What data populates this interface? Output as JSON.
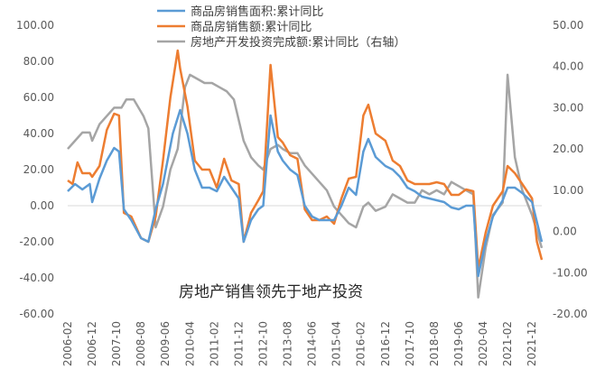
{
  "chart_data": {
    "type": "line",
    "legend": {
      "position": "top",
      "items": [
        {
          "label": "商品房销售面积:累计同比",
          "color": "#5b9bd5"
        },
        {
          "label": "商品房销售额:累计同比",
          "color": "#ed7d31"
        },
        {
          "label": "房地产开发投资完成额:累计同比（右轴）",
          "color": "#a5a5a5"
        }
      ]
    },
    "annotation": "房地产销售领先于地产投资",
    "left_axis": {
      "range": [
        -60,
        100
      ],
      "ticks": [
        "100.00",
        "80.00",
        "60.00",
        "40.00",
        "20.00",
        "0.00",
        "-20.00",
        "-40.00",
        "-60.00"
      ]
    },
    "right_axis": {
      "range": [
        -20,
        50
      ],
      "ticks": [
        "50.00",
        "40.00",
        "30.00",
        "20.00",
        "10.00",
        "0.00",
        "-10.00",
        "-20.00"
      ]
    },
    "x_tick_labels": [
      "2006-02",
      "2006-12",
      "2007-10",
      "2008-08",
      "2009-06",
      "2010-04",
      "2011-02",
      "2011-12",
      "2012-10",
      "2013-08",
      "2014-06",
      "2015-04",
      "2016-02",
      "2016-12",
      "2017-10",
      "2018-08",
      "2019-06",
      "2020-04",
      "2021-02",
      "2021-12"
    ],
    "x_range": [
      "2006-02",
      "2022-04"
    ],
    "grid": false,
    "series": [
      {
        "name": "商品房销售面积:累计同比",
        "axis": "left",
        "color": "#5b9bd5",
        "points": [
          [
            "2006-02",
            8
          ],
          [
            "2006-05",
            12
          ],
          [
            "2006-08",
            9
          ],
          [
            "2006-11",
            12
          ],
          [
            "2006-12",
            2
          ],
          [
            "2007-03",
            15
          ],
          [
            "2007-06",
            25
          ],
          [
            "2007-09",
            32
          ],
          [
            "2007-11",
            30
          ],
          [
            "2008-01",
            -2
          ],
          [
            "2008-04",
            -8
          ],
          [
            "2008-08",
            -18
          ],
          [
            "2008-11",
            -20
          ],
          [
            "2009-02",
            -2
          ],
          [
            "2009-05",
            12
          ],
          [
            "2009-09",
            40
          ],
          [
            "2009-12",
            53
          ],
          [
            "2010-03",
            40
          ],
          [
            "2010-06",
            20
          ],
          [
            "2010-09",
            10
          ],
          [
            "2010-12",
            10
          ],
          [
            "2011-03",
            8
          ],
          [
            "2011-06",
            16
          ],
          [
            "2011-09",
            10
          ],
          [
            "2011-12",
            4
          ],
          [
            "2012-02",
            -20
          ],
          [
            "2012-05",
            -8
          ],
          [
            "2012-08",
            -2
          ],
          [
            "2012-10",
            0
          ],
          [
            "2013-01",
            50
          ],
          [
            "2013-04",
            30
          ],
          [
            "2013-06",
            25
          ],
          [
            "2013-09",
            20
          ],
          [
            "2013-12",
            17
          ],
          [
            "2014-03",
            0
          ],
          [
            "2014-06",
            -6
          ],
          [
            "2014-09",
            -8
          ],
          [
            "2014-12",
            -8
          ],
          [
            "2015-03",
            -8
          ],
          [
            "2015-06",
            0
          ],
          [
            "2015-09",
            10
          ],
          [
            "2015-12",
            6
          ],
          [
            "2016-03",
            30
          ],
          [
            "2016-05",
            37
          ],
          [
            "2016-08",
            27
          ],
          [
            "2016-12",
            22
          ],
          [
            "2017-03",
            20
          ],
          [
            "2017-06",
            16
          ],
          [
            "2017-09",
            10
          ],
          [
            "2017-12",
            8
          ],
          [
            "2018-03",
            5
          ],
          [
            "2018-06",
            4
          ],
          [
            "2018-09",
            3
          ],
          [
            "2018-12",
            2
          ],
          [
            "2019-03",
            -1
          ],
          [
            "2019-06",
            -2
          ],
          [
            "2019-09",
            0
          ],
          [
            "2019-12",
            0
          ],
          [
            "2020-02",
            -39
          ],
          [
            "2020-05",
            -20
          ],
          [
            "2020-08",
            -6
          ],
          [
            "2020-12",
            3
          ],
          [
            "2021-02",
            10
          ],
          [
            "2021-05",
            10
          ],
          [
            "2021-08",
            7
          ],
          [
            "2021-12",
            2
          ],
          [
            "2022-02",
            -9
          ],
          [
            "2022-04",
            -20
          ]
        ]
      },
      {
        "name": "商品房销售额:累计同比",
        "axis": "left",
        "color": "#ed7d31",
        "points": [
          [
            "2006-02",
            14
          ],
          [
            "2006-04",
            12
          ],
          [
            "2006-06",
            24
          ],
          [
            "2006-08",
            18
          ],
          [
            "2006-11",
            18
          ],
          [
            "2006-12",
            16
          ],
          [
            "2007-03",
            22
          ],
          [
            "2007-06",
            42
          ],
          [
            "2007-09",
            51
          ],
          [
            "2007-11",
            50
          ],
          [
            "2008-01",
            -4
          ],
          [
            "2008-04",
            -6
          ],
          [
            "2008-08",
            -18
          ],
          [
            "2008-11",
            -20
          ],
          [
            "2009-02",
            -6
          ],
          [
            "2009-05",
            25
          ],
          [
            "2009-08",
            60
          ],
          [
            "2009-11",
            86
          ],
          [
            "2009-12",
            76
          ],
          [
            "2010-03",
            55
          ],
          [
            "2010-06",
            25
          ],
          [
            "2010-09",
            20
          ],
          [
            "2010-12",
            20
          ],
          [
            "2011-03",
            10
          ],
          [
            "2011-06",
            26
          ],
          [
            "2011-09",
            14
          ],
          [
            "2011-12",
            12
          ],
          [
            "2012-02",
            -20
          ],
          [
            "2012-05",
            -4
          ],
          [
            "2012-08",
            3
          ],
          [
            "2012-10",
            8
          ],
          [
            "2013-01",
            78
          ],
          [
            "2013-04",
            38
          ],
          [
            "2013-06",
            35
          ],
          [
            "2013-09",
            28
          ],
          [
            "2013-12",
            26
          ],
          [
            "2014-03",
            -2
          ],
          [
            "2014-06",
            -8
          ],
          [
            "2014-09",
            -8
          ],
          [
            "2014-12",
            -6
          ],
          [
            "2015-03",
            -10
          ],
          [
            "2015-06",
            4
          ],
          [
            "2015-09",
            15
          ],
          [
            "2015-12",
            16
          ],
          [
            "2016-03",
            50
          ],
          [
            "2016-05",
            56
          ],
          [
            "2016-08",
            40
          ],
          [
            "2016-12",
            36
          ],
          [
            "2017-03",
            25
          ],
          [
            "2017-06",
            22
          ],
          [
            "2017-09",
            14
          ],
          [
            "2017-12",
            12
          ],
          [
            "2018-03",
            12
          ],
          [
            "2018-06",
            12
          ],
          [
            "2018-09",
            13
          ],
          [
            "2018-12",
            12
          ],
          [
            "2019-03",
            6
          ],
          [
            "2019-06",
            6
          ],
          [
            "2019-09",
            9
          ],
          [
            "2019-12",
            8
          ],
          [
            "2020-02",
            -35
          ],
          [
            "2020-05",
            -15
          ],
          [
            "2020-08",
            0
          ],
          [
            "2020-12",
            8
          ],
          [
            "2021-02",
            22
          ],
          [
            "2021-05",
            18
          ],
          [
            "2021-08",
            12
          ],
          [
            "2021-12",
            4
          ],
          [
            "2022-02",
            -20
          ],
          [
            "2022-04",
            -30
          ]
        ]
      },
      {
        "name": "房地产开发投资完成额:累计同比（右轴）",
        "axis": "right",
        "color": "#a5a5a5",
        "points": [
          [
            "2006-02",
            20
          ],
          [
            "2006-05",
            22
          ],
          [
            "2006-08",
            24
          ],
          [
            "2006-11",
            24
          ],
          [
            "2006-12",
            22
          ],
          [
            "2007-03",
            26
          ],
          [
            "2007-06",
            28
          ],
          [
            "2007-09",
            30
          ],
          [
            "2007-12",
            30
          ],
          [
            "2008-02",
            32
          ],
          [
            "2008-05",
            32
          ],
          [
            "2008-09",
            28
          ],
          [
            "2008-11",
            25
          ],
          [
            "2009-02",
            1
          ],
          [
            "2009-05",
            6
          ],
          [
            "2009-08",
            15
          ],
          [
            "2009-11",
            20
          ],
          [
            "2010-02",
            35
          ],
          [
            "2010-04",
            38
          ],
          [
            "2010-07",
            37
          ],
          [
            "2010-10",
            36
          ],
          [
            "2011-01",
            36
          ],
          [
            "2011-04",
            35
          ],
          [
            "2011-07",
            34
          ],
          [
            "2011-10",
            32
          ],
          [
            "2012-02",
            22
          ],
          [
            "2012-05",
            18
          ],
          [
            "2012-08",
            16
          ],
          [
            "2012-10",
            15
          ],
          [
            "2013-01",
            20
          ],
          [
            "2013-04",
            21
          ],
          [
            "2013-06",
            20
          ],
          [
            "2013-09",
            19
          ],
          [
            "2013-12",
            19
          ],
          [
            "2014-03",
            16
          ],
          [
            "2014-06",
            14
          ],
          [
            "2014-09",
            12
          ],
          [
            "2014-12",
            10
          ],
          [
            "2015-03",
            6
          ],
          [
            "2015-06",
            4
          ],
          [
            "2015-09",
            2
          ],
          [
            "2015-12",
            1
          ],
          [
            "2016-03",
            6
          ],
          [
            "2016-05",
            7
          ],
          [
            "2016-08",
            5
          ],
          [
            "2016-12",
            6
          ],
          [
            "2017-03",
            9
          ],
          [
            "2017-06",
            8
          ],
          [
            "2017-09",
            7
          ],
          [
            "2017-12",
            7
          ],
          [
            "2018-03",
            10
          ],
          [
            "2018-06",
            9
          ],
          [
            "2018-09",
            10
          ],
          [
            "2018-12",
            9
          ],
          [
            "2019-03",
            12
          ],
          [
            "2019-06",
            11
          ],
          [
            "2019-09",
            10
          ],
          [
            "2019-12",
            9
          ],
          [
            "2020-02",
            -16
          ],
          [
            "2020-05",
            -4
          ],
          [
            "2020-08",
            4
          ],
          [
            "2020-12",
            7
          ],
          [
            "2021-02",
            38
          ],
          [
            "2021-05",
            18
          ],
          [
            "2021-08",
            10
          ],
          [
            "2021-12",
            4
          ],
          [
            "2022-02",
            0
          ],
          [
            "2022-04",
            -4
          ]
        ]
      }
    ]
  }
}
